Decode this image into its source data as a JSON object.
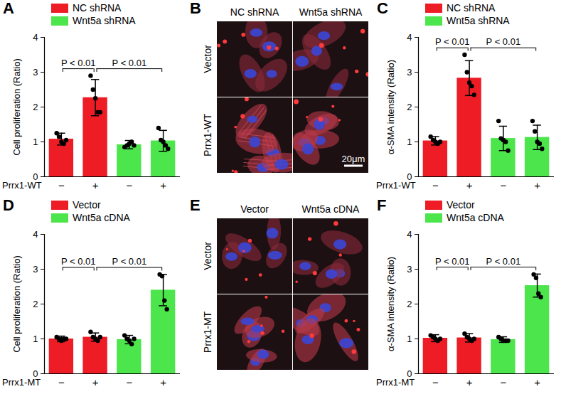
{
  "chart_data": [
    {
      "panel": "A",
      "type": "bar",
      "ylabel": "Cell proliferation (Ratio)",
      "xlabel": "Prrx1-WT",
      "categories": [
        "−",
        "+",
        "−",
        "+"
      ],
      "ylim": [
        0,
        4
      ],
      "yticks": [
        0,
        1,
        2,
        3,
        4
      ],
      "legend": "top-left",
      "series": [
        {
          "name": "NC shRNA",
          "color": "#ee1c25",
          "values": [
            1.08,
            2.27,
            null,
            null
          ],
          "error": [
            0.17,
            0.52,
            null,
            null
          ],
          "points": [
            [
              1.25,
              1.15,
              1.0,
              0.95,
              1.05
            ],
            [
              2.9,
              2.5,
              2.25,
              1.85,
              1.85
            ],
            null,
            null
          ]
        },
        {
          "name": "Wnt5a shRNA",
          "color": "#4ce64c",
          "values": [
            null,
            null,
            0.92,
            1.03
          ],
          "error": [
            null,
            null,
            0.12,
            0.3
          ],
          "points": [
            null,
            null,
            [
              0.85,
              0.9,
              0.95,
              1.0,
              0.9
            ],
            [
              1.4,
              1.05,
              1.0,
              0.9,
              0.8
            ]
          ]
        }
      ],
      "comparisons": [
        {
          "pair": [
            0,
            1
          ],
          "label": "P < 0.01"
        },
        {
          "pair": [
            1,
            3
          ],
          "label": "P < 0.01"
        }
      ]
    },
    {
      "panel": "B",
      "type": "image",
      "columns": [
        "NC shRNA",
        "Wnt5a shRNA"
      ],
      "rows": [
        "Vector",
        "Prrx1-WT"
      ],
      "scale_bar": "20μm"
    },
    {
      "panel": "C",
      "type": "bar",
      "ylabel": "α-SMA intensity (Ratio)",
      "xlabel": "Prrx1-WT",
      "categories": [
        "−",
        "+",
        "−",
        "+"
      ],
      "ylim": [
        0,
        4
      ],
      "yticks": [
        0,
        1,
        2,
        3,
        4
      ],
      "legend": "top-left",
      "series": [
        {
          "name": "NC shRNA",
          "color": "#ee1c25",
          "values": [
            1.03,
            2.83,
            null,
            null
          ],
          "error": [
            0.12,
            0.5,
            null,
            null
          ],
          "points": [
            [
              1.15,
              1.05,
              1.0,
              0.95,
              1.0
            ],
            [
              3.5,
              3.0,
              2.7,
              2.6,
              2.35
            ],
            null,
            null
          ]
        },
        {
          "name": "Wnt5a shRNA",
          "color": "#4ce64c",
          "values": [
            null,
            null,
            1.1,
            1.13
          ],
          "error": [
            null,
            null,
            0.35,
            0.35
          ],
          "points": [
            null,
            null,
            [
              1.6,
              1.1,
              1.05,
              1.0,
              0.75
            ],
            [
              1.6,
              1.3,
              1.0,
              0.95,
              0.8
            ]
          ]
        }
      ],
      "comparisons": [
        {
          "pair": [
            0,
            1
          ],
          "label": "P < 0.01"
        },
        {
          "pair": [
            1,
            3
          ],
          "label": "P < 0.01"
        }
      ]
    },
    {
      "panel": "D",
      "type": "bar",
      "ylabel": "Cell proliferation (Ratio)",
      "xlabel": "Prrx1-MT",
      "categories": [
        "−",
        "+",
        "−",
        "+"
      ],
      "ylim": [
        0,
        4
      ],
      "yticks": [
        0,
        1,
        2,
        3,
        4
      ],
      "legend": "top-left",
      "series": [
        {
          "name": "Vector",
          "color": "#ee1c25",
          "values": [
            1.0,
            1.05,
            null,
            null
          ],
          "error": [
            0.08,
            0.12,
            null,
            null
          ],
          "points": [
            [
              1.05,
              1.0,
              0.95,
              1.0,
              1.0
            ],
            [
              1.2,
              1.05,
              1.0,
              0.95,
              1.05
            ],
            null,
            null
          ]
        },
        {
          "name": "Wnt5a cDNA",
          "color": "#4ce64c",
          "values": [
            null,
            null,
            0.98,
            2.4
          ],
          "error": [
            null,
            null,
            0.12,
            0.45
          ],
          "points": [
            null,
            null,
            [
              1.1,
              1.0,
              0.95,
              0.85,
              1.0
            ],
            [
              2.85,
              2.8,
              2.1,
              1.85
            ]
          ]
        }
      ],
      "comparisons": [
        {
          "pair": [
            0,
            1
          ],
          "label": "P < 0.01"
        },
        {
          "pair": [
            1,
            3
          ],
          "label": "P < 0.01"
        }
      ]
    },
    {
      "panel": "E",
      "type": "image",
      "columns": [
        "Vector",
        "Wnt5a cDNA"
      ],
      "rows": [
        "Vector",
        "Prrx1-MT"
      ]
    },
    {
      "panel": "F",
      "type": "bar",
      "ylabel": "α-SMA intensity (Ratio)",
      "xlabel": "Prrx1-MT",
      "categories": [
        "−",
        "+",
        "−",
        "+"
      ],
      "ylim": [
        0,
        4
      ],
      "yticks": [
        0,
        1,
        2,
        3,
        4
      ],
      "legend": "top-left",
      "series": [
        {
          "name": "Vector",
          "color": "#ee1c25",
          "values": [
            1.02,
            1.03,
            null,
            null
          ],
          "error": [
            0.1,
            0.12,
            null,
            null
          ],
          "points": [
            [
              1.1,
              1.05,
              1.0,
              0.95,
              1.0
            ],
            [
              1.15,
              1.05,
              1.0,
              0.95,
              1.0
            ],
            null,
            null
          ]
        },
        {
          "name": "Wnt5a cDNA",
          "color": "#4ce64c",
          "values": [
            null,
            null,
            0.98,
            2.53
          ],
          "error": [
            null,
            null,
            0.08,
            0.33
          ],
          "points": [
            null,
            null,
            [
              1.05,
              1.0,
              0.95,
              0.95,
              0.95
            ],
            [
              2.85,
              2.75,
              2.3,
              2.2
            ]
          ]
        }
      ],
      "comparisons": [
        {
          "pair": [
            0,
            1
          ],
          "label": "P < 0.01"
        },
        {
          "pair": [
            1,
            3
          ],
          "label": "P < 0.01"
        }
      ]
    }
  ]
}
